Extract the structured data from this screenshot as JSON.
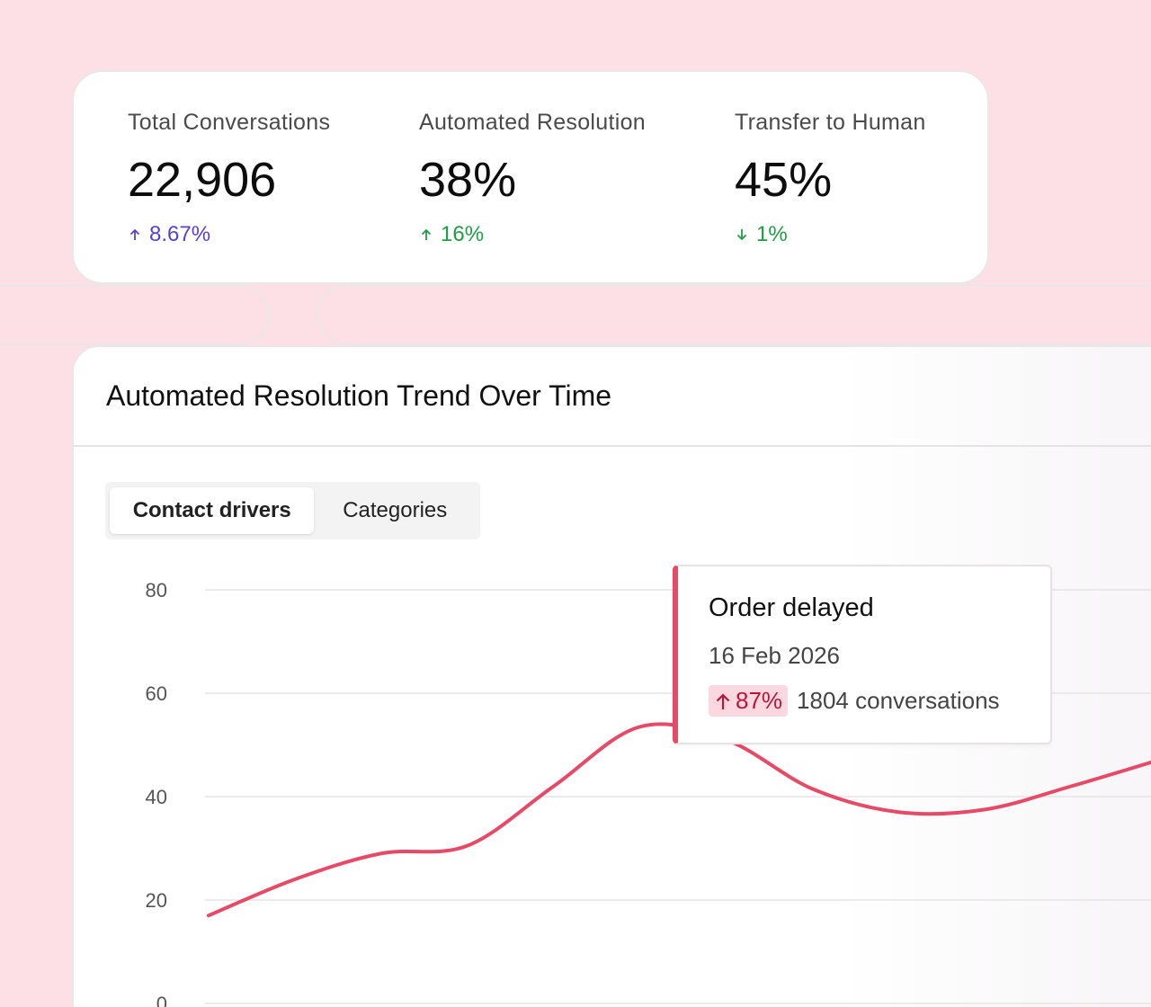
{
  "kpis": [
    {
      "label": "Total Conversations",
      "value": "22,906",
      "delta": "8.67%",
      "direction": "up",
      "color": "#5b3fd1"
    },
    {
      "label": "Automated Resolution",
      "value": "38%",
      "delta": "16%",
      "direction": "up",
      "color": "#1f9d45"
    },
    {
      "label": "Transfer to Human",
      "value": "45%",
      "delta": "1%",
      "direction": "down",
      "color": "#1f9d45"
    }
  ],
  "card": {
    "title": "Automated Resolution Trend Over Time",
    "tabs": [
      {
        "label": "Contact drivers",
        "active": true
      },
      {
        "label": "Categories",
        "active": false
      }
    ]
  },
  "tooltip": {
    "title": "Order delayed",
    "date": "16 Feb 2026",
    "change": "87%",
    "change_direction": "up",
    "count": "1804 conversations"
  },
  "chart_data": {
    "type": "line",
    "title": "",
    "xlabel": "",
    "ylabel": "",
    "ylim": [
      0,
      80
    ],
    "yticks": [
      0,
      20,
      40,
      60,
      80
    ],
    "grid": true,
    "line_color": "#e64a66",
    "series": [
      {
        "values": [
          17,
          24,
          29,
          30.5,
          42,
          53.5,
          51,
          41.5,
          37,
          37.5,
          42,
          47
        ]
      }
    ]
  }
}
